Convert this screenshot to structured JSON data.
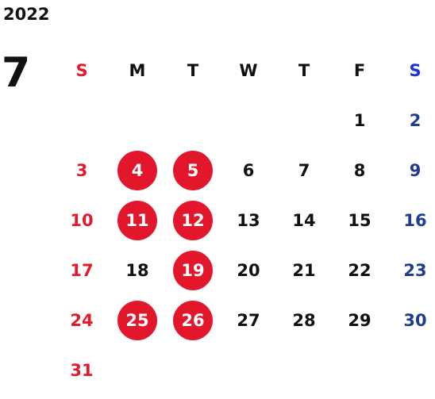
{
  "calendar": {
    "year": "2022",
    "month": "7",
    "weekdays": [
      "S",
      "M",
      "T",
      "W",
      "T",
      "F",
      "S"
    ],
    "colors": {
      "sunday": "#e11b2b",
      "saturday": "#1f3d8f",
      "saturday_header": "#1a35d6",
      "weekday": "#111111",
      "highlight": "#e2172c",
      "highlight_text": "#ffffff"
    },
    "first_weekday_index": 5,
    "days_in_month": 31,
    "highlighted_days": [
      4,
      5,
      11,
      12,
      19,
      25,
      26
    ]
  }
}
